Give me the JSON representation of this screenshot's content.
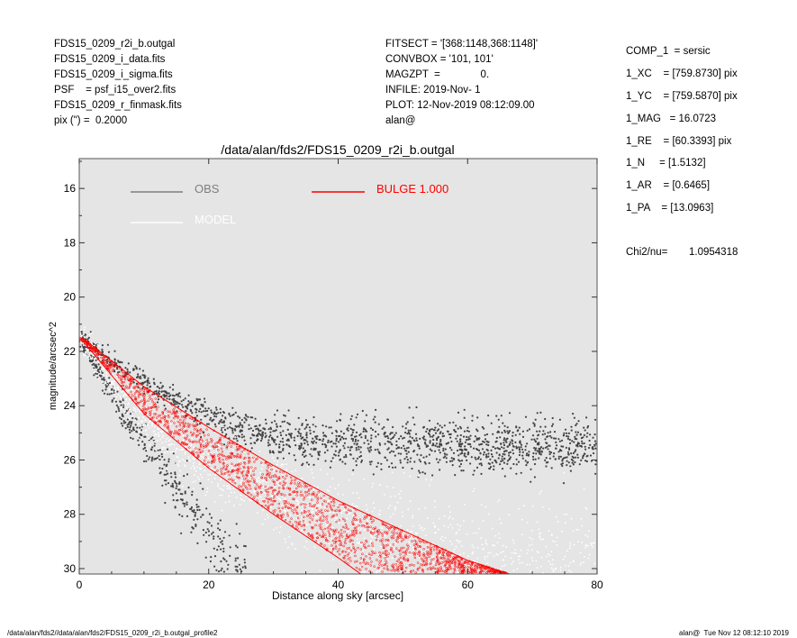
{
  "header_left": [
    "FDS15_0209_r2i_b.outgal",
    "FDS15_0209_i_data.fits",
    "FDS15_0209_i_sigma.fits",
    "PSF    = psf_i15_over2.fits",
    "FDS15_0209_r_finmask.fits",
    "pix (\") =  0.2000"
  ],
  "header_mid": [
    "FITSECT = '[368:1148,368:1148]'",
    "CONVBOX = '101, 101'",
    "MAGZPT  =              0.",
    "INFILE: 2019-Nov- 1",
    "PLOT: 12-Nov-2019 08:12:09.00",
    "alan@"
  ],
  "params": [
    "COMP_1  = sersic",
    "1_XC    = [759.8730] pix",
    "1_YC    = [759.5870] pix",
    "1_MAG   = 16.0723",
    "1_RE    = [60.3393] pix",
    "1_N     = [1.5132]",
    "1_AR    = [0.6465]",
    "1_PA    = [13.0963]"
  ],
  "chi2": {
    "label": "Chi2/nu=",
    "value": "1.0954318"
  },
  "footer": {
    "left": "/data/alan/fds2//data/alan/fds2/FDS15_0209_r2i_b.outgal_profile2",
    "right": "alan@  Tue Nov 12 08:12:10 2019"
  },
  "colors": {
    "background": "#e5e5e5",
    "obs": "#444444",
    "obs_legend": "#7f7f7f",
    "model": "#ffffff",
    "bulge": "#ff0000"
  },
  "chart_data": {
    "type": "scatter",
    "title": "/data/alan/fds2/FDS15_0209_r2i_b.outgal",
    "xlabel": "Distance along sky [arcsec]",
    "ylabel": "magnitude/arcsec^2",
    "xlim": [
      0,
      80
    ],
    "ylim": [
      30.2,
      14.9
    ],
    "y_inverted": true,
    "xticks": [
      0,
      20,
      40,
      60,
      80
    ],
    "xtick_labels": [
      "0",
      "20",
      "40",
      "60",
      "80"
    ],
    "yticks": [
      16,
      18,
      20,
      22,
      24,
      26,
      28,
      30
    ],
    "ytick_labels": [
      "16",
      "18",
      "20",
      "22",
      "24",
      "26",
      "28",
      "30"
    ],
    "grid": false,
    "legend": [
      {
        "label": "OBS",
        "color": "#7f7f7f"
      },
      {
        "label": "MODEL",
        "color": "#ffffff"
      },
      {
        "label": "BULGE  1.000",
        "color": "#ff0000"
      }
    ],
    "series": [
      {
        "name": "OBS",
        "color": "#444444",
        "description_points": [
          {
            "x": 0.5,
            "y": 21.5
          },
          {
            "x": 5,
            "y": 22.4
          },
          {
            "x": 10,
            "y": 23.1
          },
          {
            "x": 15,
            "y": 23.8
          },
          {
            "x": 20,
            "y": 24.4
          },
          {
            "x": 25,
            "y": 24.8
          },
          {
            "x": 30,
            "y": 25.1
          },
          {
            "x": 40,
            "y": 25.3
          },
          {
            "x": 50,
            "y": 25.4
          },
          {
            "x": 60,
            "y": 25.5
          },
          {
            "x": 80,
            "y": 25.5
          }
        ],
        "lower_branch_points": [
          {
            "x": 0.5,
            "y": 21.6
          },
          {
            "x": 4,
            "y": 23.2
          },
          {
            "x": 8,
            "y": 24.6
          },
          {
            "x": 12,
            "y": 26.0
          },
          {
            "x": 16,
            "y": 27.4
          },
          {
            "x": 20,
            "y": 28.6
          },
          {
            "x": 24,
            "y": 30.0
          }
        ]
      },
      {
        "name": "MODEL",
        "color": "#ffffff",
        "description_points": [
          {
            "x": 0.5,
            "y": 21.6
          },
          {
            "x": 10,
            "y": 24.6
          },
          {
            "x": 20,
            "y": 26.2
          },
          {
            "x": 30,
            "y": 27.3
          },
          {
            "x": 40,
            "y": 28.2
          },
          {
            "x": 50,
            "y": 28.9
          },
          {
            "x": 60,
            "y": 29.5
          },
          {
            "x": 70,
            "y": 30.0
          }
        ]
      },
      {
        "name": "BULGE  1.000",
        "color": "#ff0000",
        "upper_edge": [
          {
            "x": 0.5,
            "y": 21.5
          },
          {
            "x": 10,
            "y": 23.3
          },
          {
            "x": 20,
            "y": 24.8
          },
          {
            "x": 30,
            "y": 26.2
          },
          {
            "x": 40,
            "y": 27.5
          },
          {
            "x": 50,
            "y": 28.6
          },
          {
            "x": 60,
            "y": 29.7
          },
          {
            "x": 66.5,
            "y": 30.2
          }
        ],
        "lower_edge": [
          {
            "x": 0.5,
            "y": 21.6
          },
          {
            "x": 10,
            "y": 24.3
          },
          {
            "x": 20,
            "y": 26.3
          },
          {
            "x": 30,
            "y": 28.0
          },
          {
            "x": 40,
            "y": 29.6
          },
          {
            "x": 43.5,
            "y": 30.2
          }
        ]
      }
    ]
  }
}
